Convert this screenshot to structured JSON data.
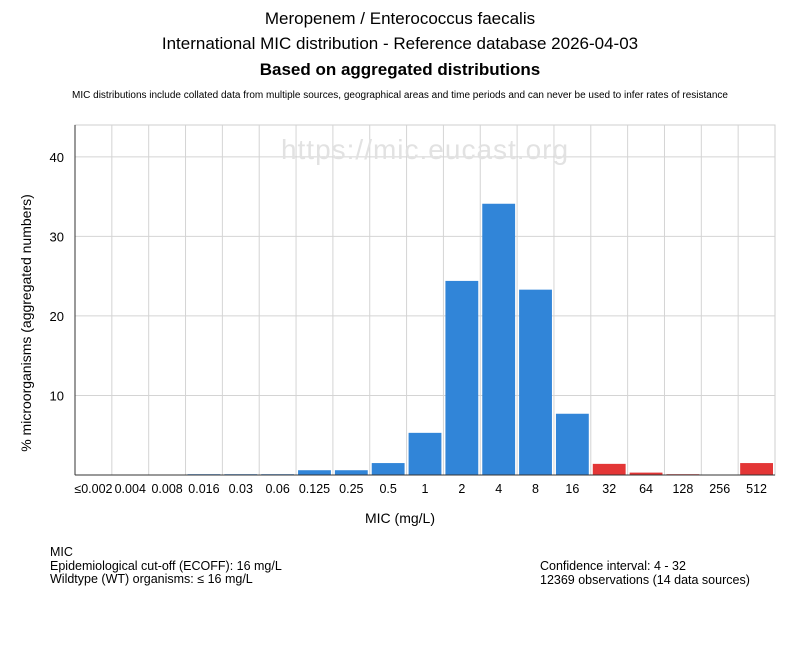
{
  "header": {
    "title_line1": "Meropenem / Enterococcus faecalis",
    "title_line2": "International MIC distribution - Reference database 2026-04-03",
    "title_line3": "Based on aggregated distributions",
    "disclaimer": "MIC distributions include collated data from multiple sources, geographical areas and time periods and can never be used to infer rates of resistance"
  },
  "watermark": "https://mic.eucast.org",
  "chart_data": {
    "type": "bar",
    "xlabel": "MIC (mg/L)",
    "ylabel": "% microorganisms (aggregated numbers)",
    "ylim": [
      0,
      44
    ],
    "yticks": [
      10,
      20,
      30,
      40
    ],
    "grid": true,
    "categories": [
      "≤0.002",
      "0.004",
      "0.008",
      "0.016",
      "0.03",
      "0.06",
      "0.125",
      "0.25",
      "0.5",
      "1",
      "2",
      "4",
      "8",
      "16",
      "32",
      "64",
      "128",
      "256",
      "512"
    ],
    "values": [
      0,
      0,
      0,
      0.1,
      0.1,
      0.1,
      0.6,
      0.6,
      1.5,
      5.3,
      24.4,
      34.1,
      23.3,
      7.7,
      1.4,
      0.3,
      0.1,
      0,
      1.5
    ],
    "bar_colors": [
      "#3185d8",
      "#3185d8",
      "#3185d8",
      "#3185d8",
      "#3185d8",
      "#3185d8",
      "#3185d8",
      "#3185d8",
      "#3185d8",
      "#3185d8",
      "#3185d8",
      "#3185d8",
      "#3185d8",
      "#3185d8",
      "#e33636",
      "#e33636",
      "#e33636",
      "#e33636",
      "#e33636"
    ]
  },
  "footer": {
    "left": {
      "line1": "MIC",
      "line2": "Epidemiological cut-off (ECOFF): 16 mg/L",
      "line3": "Wildtype (WT) organisms: ≤ 16 mg/L"
    },
    "right": {
      "line1": "Confidence interval: 4 - 32",
      "line2": "12369 observations (14 data sources)"
    }
  }
}
